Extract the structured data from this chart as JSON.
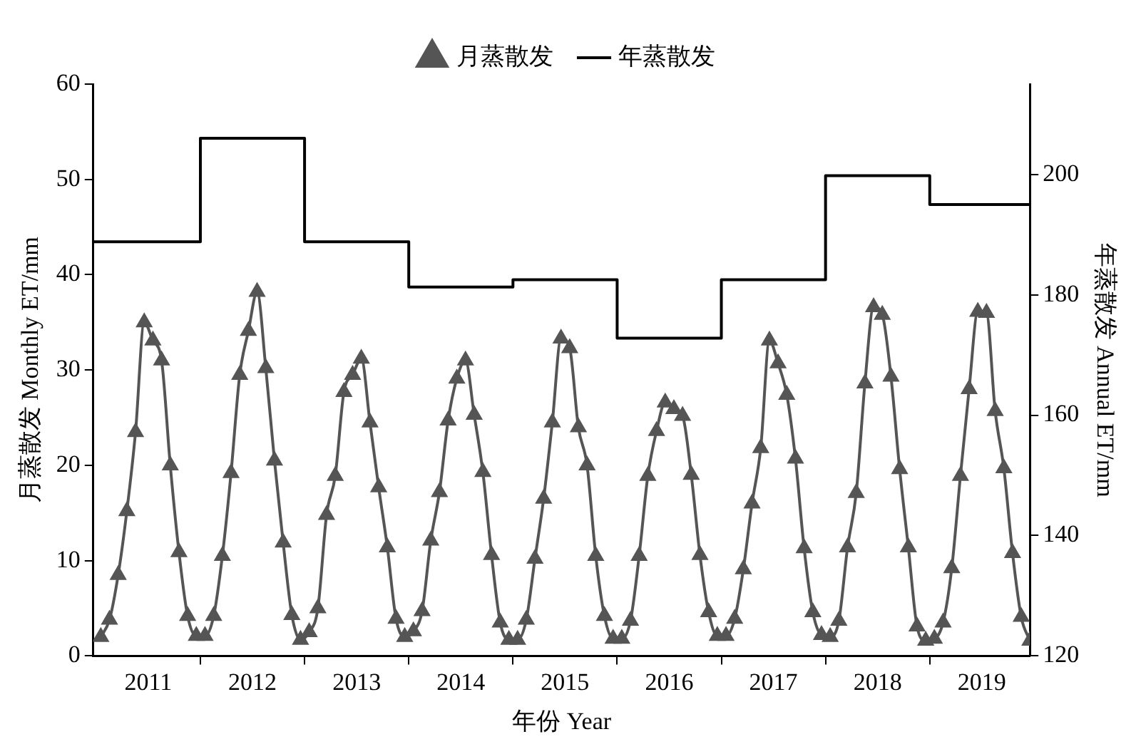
{
  "chart_data": {
    "type": "line",
    "xlabel": "年份 Year",
    "ylabel": "月蒸散发 Monthly ET/mm",
    "y2label": "年蒸散发 Annual ET/mm",
    "x": [
      "2011-01",
      "2011-02",
      "2011-03",
      "2011-04",
      "2011-05",
      "2011-06",
      "2011-07",
      "2011-08",
      "2011-09",
      "2011-10",
      "2011-11",
      "2011-12",
      "2012-01",
      "2012-02",
      "2012-03",
      "2012-04",
      "2012-05",
      "2012-06",
      "2012-07",
      "2012-08",
      "2012-09",
      "2012-10",
      "2012-11",
      "2012-12",
      "2013-01",
      "2013-02",
      "2013-03",
      "2013-04",
      "2013-05",
      "2013-06",
      "2013-07",
      "2013-08",
      "2013-09",
      "2013-10",
      "2013-11",
      "2013-12",
      "2014-01",
      "2014-02",
      "2014-03",
      "2014-04",
      "2014-05",
      "2014-06",
      "2014-07",
      "2014-08",
      "2014-09",
      "2014-10",
      "2014-11",
      "2014-12",
      "2015-01",
      "2015-02",
      "2015-03",
      "2015-04",
      "2015-05",
      "2015-06",
      "2015-07",
      "2015-08",
      "2015-09",
      "2015-10",
      "2015-11",
      "2015-12",
      "2016-01",
      "2016-02",
      "2016-03",
      "2016-04",
      "2016-05",
      "2016-06",
      "2016-07",
      "2016-08",
      "2016-09",
      "2016-10",
      "2016-11",
      "2016-12",
      "2017-01",
      "2017-02",
      "2017-03",
      "2017-04",
      "2017-05",
      "2017-06",
      "2017-07",
      "2017-08",
      "2017-09",
      "2017-10",
      "2017-11",
      "2017-12",
      "2018-01",
      "2018-02",
      "2018-03",
      "2018-04",
      "2018-05",
      "2018-06",
      "2018-07",
      "2018-08",
      "2018-09",
      "2018-10",
      "2018-11",
      "2018-12",
      "2019-01",
      "2019-02",
      "2019-03",
      "2019-04",
      "2019-05",
      "2019-06",
      "2019-07",
      "2019-08",
      "2019-09",
      "2019-10",
      "2019-11",
      "2019-12"
    ],
    "series": [
      {
        "name": "月蒸散发",
        "color": "#555555",
        "marker": "triangle",
        "values": [
          2.0,
          3.8,
          8.5,
          15.2,
          23.5,
          35.0,
          33.1,
          31.0,
          20.0,
          10.9,
          4.2,
          2.1,
          2.1,
          4.2,
          10.5,
          19.2,
          29.5,
          34.1,
          38.2,
          30.2,
          20.5,
          11.9,
          4.3,
          1.7,
          2.5,
          5.0,
          14.8,
          18.9,
          27.7,
          29.5,
          31.2,
          24.5,
          17.7,
          11.4,
          3.9,
          2.0,
          2.6,
          4.7,
          12.1,
          17.2,
          24.7,
          29.1,
          31.0,
          25.3,
          19.3,
          10.6,
          3.5,
          1.7,
          1.7,
          3.8,
          10.2,
          16.5,
          24.5,
          33.3,
          32.3,
          24.0,
          20.0,
          10.5,
          4.2,
          1.8,
          1.8,
          3.7,
          10.5,
          18.9,
          23.6,
          26.6,
          25.9,
          25.2,
          19.0,
          10.6,
          4.6,
          2.1,
          2.1,
          3.9,
          9.1,
          16.0,
          21.8,
          33.1,
          30.7,
          27.4,
          20.7,
          11.3,
          4.6,
          2.2,
          2.0,
          3.7,
          11.4,
          17.1,
          28.6,
          36.6,
          35.8,
          29.3,
          19.6,
          11.4,
          3.1,
          1.6,
          1.8,
          3.5,
          9.2,
          18.9,
          28.0,
          36.1,
          36.0,
          25.7,
          19.7,
          10.8,
          4.1,
          1.6
        ]
      },
      {
        "name": "年蒸散发",
        "type": "step",
        "axis": "y2",
        "color": "#000000",
        "marker": "none",
        "x": [
          "2010-12-05",
          "2011-12-15",
          "2012-12-15",
          "2013-12-15",
          "2014-12-15",
          "2015-12-15",
          "2016-12-15",
          "2017-12-15",
          "2018-12-15",
          "2019-12"
        ],
        "values": [
          188.8,
          206,
          188.8,
          181.3,
          182.5,
          172.8,
          182.5,
          199.8,
          195,
          195
        ]
      }
    ],
    "xlim": [
      "2010-12-05",
      "2019-12"
    ],
    "xticks": [
      {
        "value": "2011-06-15",
        "label": "2011"
      },
      {
        "value": "2011-12-15",
        "label": null
      },
      {
        "value": "2012-06-15",
        "label": "2012"
      },
      {
        "value": "2012-12-15",
        "label": null
      },
      {
        "value": "2013-06-15",
        "label": "2013"
      },
      {
        "value": "2013-12-15",
        "label": null
      },
      {
        "value": "2014-06-15",
        "label": "2014"
      },
      {
        "value": "2014-12-15",
        "label": null
      },
      {
        "value": "2015-06-15",
        "label": "2015"
      },
      {
        "value": "2015-12-15",
        "label": null
      },
      {
        "value": "2016-06-15",
        "label": "2016"
      },
      {
        "value": "2016-12-15",
        "label": null
      },
      {
        "value": "2017-06-15",
        "label": "2017"
      },
      {
        "value": "2017-12-15",
        "label": null
      },
      {
        "value": "2018-06-15",
        "label": "2018"
      },
      {
        "value": "2018-12-15",
        "label": null
      },
      {
        "value": "2019-06-15",
        "label": "2019"
      }
    ],
    "ylim": [
      0,
      60
    ],
    "yticks": [
      0,
      10,
      20,
      30,
      40,
      50,
      60
    ],
    "y2lim": [
      120,
      215
    ],
    "y2ticks": [
      120,
      140,
      160,
      180,
      200
    ],
    "grid": false,
    "legend": "top",
    "line_style": "solid"
  }
}
